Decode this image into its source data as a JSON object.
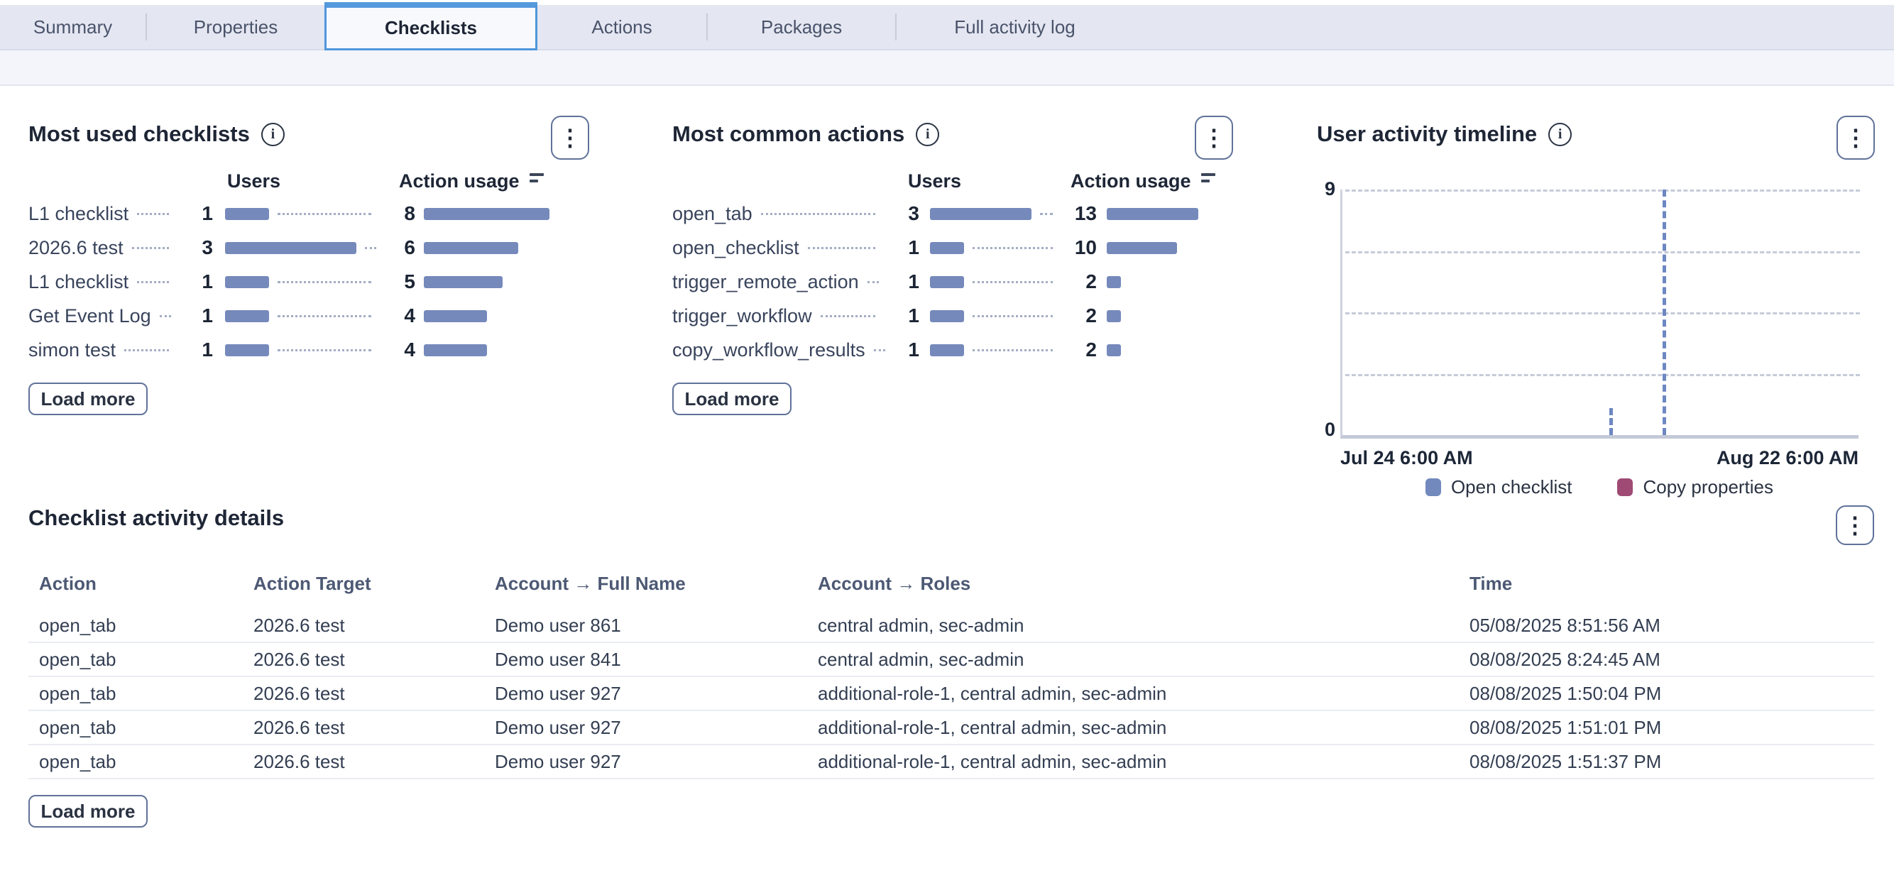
{
  "tabs": [
    {
      "label": "Summary",
      "active": false
    },
    {
      "label": "Properties",
      "active": false
    },
    {
      "label": "Checklists",
      "active": true
    },
    {
      "label": "Actions",
      "active": false
    },
    {
      "label": "Packages",
      "active": false
    },
    {
      "label": "Full activity log",
      "active": false
    }
  ],
  "icons": {
    "kebab": "⋮",
    "info": "i"
  },
  "panels": {
    "most_used_checklists": {
      "title": "Most used checklists",
      "col_users": "Users",
      "col_action": "Action usage",
      "rows": [
        {
          "label": "L1 checklist",
          "users": 1,
          "action_usage": 8
        },
        {
          "label": "2026.6 test",
          "users": 3,
          "action_usage": 6
        },
        {
          "label": "L1 checklist",
          "users": 1,
          "action_usage": 5
        },
        {
          "label": "Get Event Log",
          "users": 1,
          "action_usage": 4
        },
        {
          "label": "simon test",
          "users": 1,
          "action_usage": 4
        }
      ],
      "load_more": "Load more"
    },
    "most_common_actions": {
      "title": "Most common actions",
      "col_users": "Users",
      "col_action": "Action usage",
      "rows": [
        {
          "label": "open_tab",
          "users": 3,
          "action_usage": 13
        },
        {
          "label": "open_checklist",
          "users": 1,
          "action_usage": 10
        },
        {
          "label": "trigger_remote_action",
          "users": 1,
          "action_usage": 2
        },
        {
          "label": "trigger_workflow",
          "users": 1,
          "action_usage": 2
        },
        {
          "label": "copy_workflow_results",
          "users": 1,
          "action_usage": 2
        }
      ],
      "load_more": "Load more"
    },
    "user_activity_timeline": {
      "title": "User activity timeline"
    }
  },
  "chart_data": [
    {
      "type": "bar",
      "title": "Most used checklists",
      "categories": [
        "L1 checklist",
        "2026.6 test",
        "L1 checklist",
        "Get Event Log",
        "simon test"
      ],
      "series": [
        {
          "name": "Users",
          "values": [
            1,
            3,
            1,
            1,
            1
          ]
        },
        {
          "name": "Action usage",
          "values": [
            8,
            6,
            5,
            4,
            4
          ]
        }
      ]
    },
    {
      "type": "bar",
      "title": "Most common actions",
      "categories": [
        "open_tab",
        "open_checklist",
        "trigger_remote_action",
        "trigger_workflow",
        "copy_workflow_results"
      ],
      "series": [
        {
          "name": "Users",
          "values": [
            3,
            1,
            1,
            1,
            1
          ]
        },
        {
          "name": "Action usage",
          "values": [
            13,
            10,
            2,
            2,
            2
          ]
        }
      ]
    },
    {
      "type": "bar",
      "title": "User activity timeline",
      "ylim": [
        0,
        9
      ],
      "y_ticks": [
        9,
        0
      ],
      "gridlines": [
        9,
        6.75,
        4.5,
        2.25
      ],
      "x_start_label": "Jul 24 6:00 AM",
      "x_end_label": "Aug 22 6:00 AM",
      "legend": [
        {
          "label": "Open checklist",
          "color": "#7189bd"
        },
        {
          "label": "Copy properties",
          "color": "#9e4a74"
        }
      ],
      "series": [
        {
          "name": "Open checklist",
          "points": [
            {
              "x_percent": 51.7,
              "value": 1
            },
            {
              "x_percent": 62.0,
              "value": 9
            }
          ]
        },
        {
          "name": "Copy properties",
          "points": []
        }
      ]
    }
  ],
  "details": {
    "title": "Checklist activity details",
    "columns": [
      "Action",
      "Action Target",
      "Account → Full Name",
      "Account → Roles",
      "Time"
    ],
    "rows": [
      [
        "open_tab",
        "2026.6 test",
        "Demo user 861",
        "central admin, sec-admin",
        "05/08/2025 8:51:56 AM"
      ],
      [
        "open_tab",
        "2026.6 test",
        "Demo user 841",
        "central admin, sec-admin",
        "08/08/2025 8:24:45 AM"
      ],
      [
        "open_tab",
        "2026.6 test",
        "Demo user 927",
        "additional-role-1, central admin, sec-admin",
        "08/08/2025 1:50:04 PM"
      ],
      [
        "open_tab",
        "2026.6 test",
        "Demo user 927",
        "additional-role-1, central admin, sec-admin",
        "08/08/2025 1:51:01 PM"
      ],
      [
        "open_tab",
        "2026.6 test",
        "Demo user 927",
        "additional-role-1, central admin, sec-admin",
        "08/08/2025 1:51:37 PM"
      ]
    ],
    "load_more": "Load more"
  },
  "colors": {
    "accent_blue": "#4f96db",
    "bar": "#7589bb",
    "spike": "#6d87c2",
    "legend_open_checklist": "#7189bd",
    "legend_copy_properties": "#9e4a74"
  }
}
